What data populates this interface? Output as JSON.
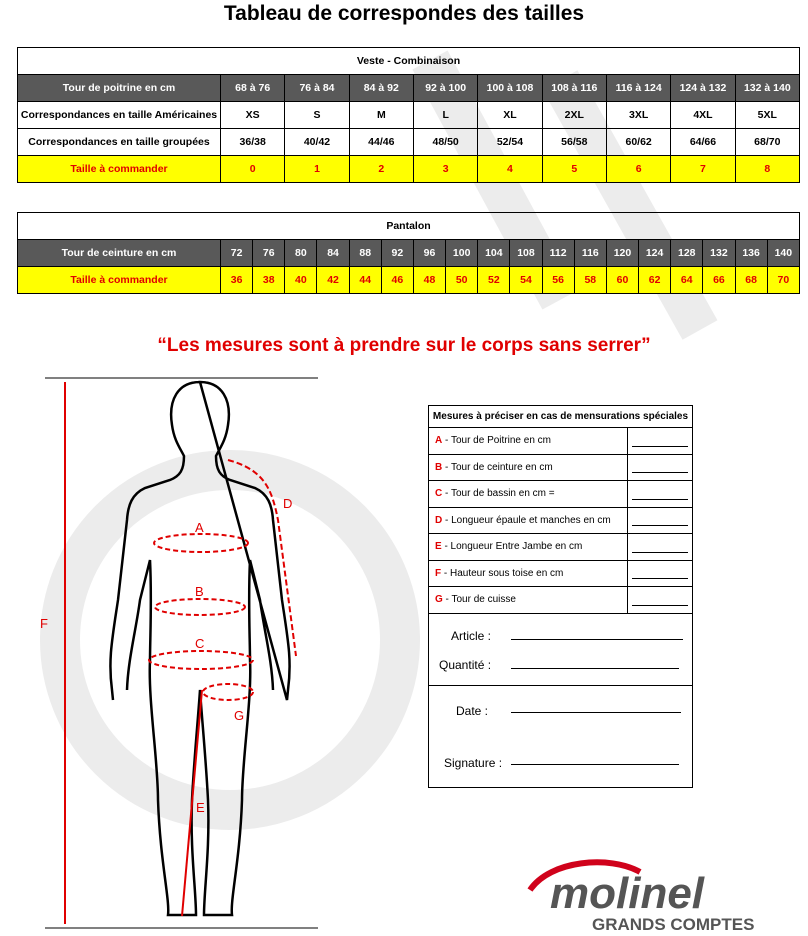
{
  "title": "Tableau de correspondes des tailles",
  "veste": {
    "caption": "Veste - Combinaison",
    "rows": [
      {
        "label": "Tour de poitrine en cm",
        "values": [
          "68 à 76",
          "76 à 84",
          "84 à 92",
          "92 à 100",
          "100 à 108",
          "108 à 116",
          "116 à 124",
          "124 à 132",
          "132 à 140"
        ]
      },
      {
        "label": "Correspondances en taille Américaines",
        "values": [
          "XS",
          "S",
          "M",
          "L",
          "XL",
          "2XL",
          "3XL",
          "4XL",
          "5XL"
        ]
      },
      {
        "label": "Correspondances en taille groupées",
        "values": [
          "36/38",
          "40/42",
          "44/46",
          "48/50",
          "52/54",
          "56/58",
          "60/62",
          "64/66",
          "68/70"
        ]
      },
      {
        "label": "Taille à commander",
        "values": [
          "0",
          "1",
          "2",
          "3",
          "4",
          "5",
          "6",
          "7",
          "8"
        ]
      }
    ]
  },
  "pantalon": {
    "caption": "Pantalon",
    "rows": [
      {
        "label": "Tour de ceinture en cm",
        "values": [
          "72",
          "76",
          "80",
          "84",
          "88",
          "92",
          "96",
          "100",
          "104",
          "108",
          "112",
          "116",
          "120",
          "124",
          "128",
          "132",
          "136",
          "140"
        ]
      },
      {
        "label": "Taille à commander",
        "values": [
          "36",
          "38",
          "40",
          "42",
          "44",
          "46",
          "48",
          "50",
          "52",
          "54",
          "56",
          "58",
          "60",
          "62",
          "64",
          "66",
          "68",
          "70"
        ]
      }
    ]
  },
  "quote": "“Les mesures sont à prendre sur le corps sans serrer”",
  "figure_labels": [
    "A",
    "B",
    "C",
    "D",
    "E",
    "F",
    "G"
  ],
  "form": {
    "header": "Mesures à préciser en cas de mensurations spéciales",
    "items": [
      {
        "letter": "A",
        "text": " - Tour de Poitrine en cm"
      },
      {
        "letter": "B",
        "text": " - Tour de ceinture en cm"
      },
      {
        "letter": "C",
        "text": " - Tour de bassin en cm ="
      },
      {
        "letter": "D",
        "text": " - Longueur épaule et manches en cm"
      },
      {
        "letter": "E",
        "text": " - Longueur Entre Jambe en  cm"
      },
      {
        "letter": "F",
        "text": " - Hauteur sous toise en cm"
      },
      {
        "letter": "G",
        "text": " - Tour de cuisse"
      }
    ],
    "article": "Article :",
    "quantite": "Quantité :",
    "date": "Date :",
    "signature": "Signature :"
  },
  "logo": {
    "brand": "molinel",
    "sub": "GRANDS COMPTES"
  },
  "colors": {
    "red": "#e00000",
    "yellow": "#ffff00",
    "header_gray": "#595959"
  }
}
